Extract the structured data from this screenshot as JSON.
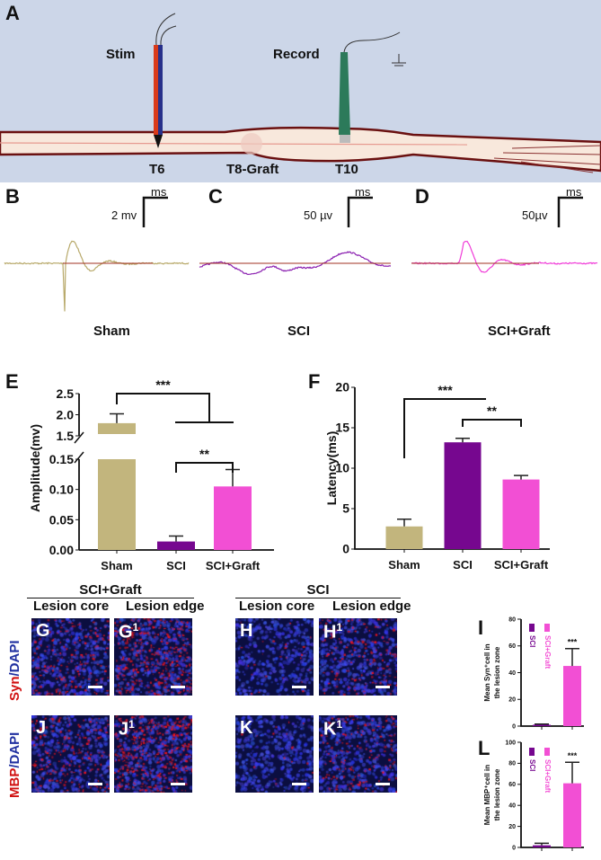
{
  "panel_labels": {
    "a": "A",
    "b": "B",
    "c": "C",
    "d": "D",
    "e": "E",
    "f": "F",
    "g": "G",
    "g1": "G",
    "h": "H",
    "h1": "H",
    "i": "I",
    "j": "J",
    "j1": "J",
    "k": "K",
    "k1": "K",
    "l": "L",
    "sup1": "1"
  },
  "schematic": {
    "stim": "Stim",
    "record": "Record",
    "t6": "T6",
    "t8": "T8-Graft",
    "t10": "T10"
  },
  "traces": [
    {
      "name": "Sham",
      "scale_y": "2 mv",
      "scale_x": "ms",
      "color": "#b8a96a"
    },
    {
      "name": "SCI",
      "scale_y": "50 µv",
      "scale_x": "ms",
      "color": "#8a1fb0"
    },
    {
      "name": "SCI+Graft",
      "scale_y": "50µv",
      "scale_x": "ms",
      "color": "#f03cd8"
    }
  ],
  "colors": {
    "sham": "#c2b57d",
    "sci": "#76078f",
    "graft": "#f24fd4",
    "baseline": "#a03020"
  },
  "chart_data": [
    {
      "id": "E",
      "type": "bar",
      "ylabel": "Amplitude(mv)",
      "categories": [
        "Sham",
        "SCI",
        "SCI+Graft"
      ],
      "values": [
        1.8,
        0.014,
        0.105
      ],
      "errors": [
        0.22,
        0.009,
        0.028
      ],
      "broken_axis": true,
      "ylim_lower": [
        0,
        0.15
      ],
      "ylim_upper": [
        1.5,
        2.5
      ],
      "yticks_lower": [
        "0.00",
        "0.05",
        "0.10",
        "0.15"
      ],
      "yticks_upper": [
        "1.5",
        "2.0",
        "2.5"
      ],
      "significance": [
        {
          "pair": [
            "Sham",
            "SCI / SCI+Graft"
          ],
          "label": "***"
        },
        {
          "pair": [
            "SCI",
            "SCI+Graft"
          ],
          "label": "**"
        }
      ]
    },
    {
      "id": "F",
      "type": "bar",
      "ylabel": "Latency(ms)",
      "categories": [
        "Sham",
        "SCI",
        "SCI+Graft"
      ],
      "values": [
        2.8,
        13.2,
        8.6
      ],
      "errors": [
        0.9,
        0.5,
        0.5
      ],
      "ylim": [
        0,
        20
      ],
      "yticks": [
        "0",
        "5",
        "10",
        "15",
        "20"
      ],
      "significance": [
        {
          "pair": [
            "Sham",
            "SCI"
          ],
          "label": "***"
        },
        {
          "pair": [
            "SCI",
            "SCI+Graft"
          ],
          "label": "**"
        }
      ]
    },
    {
      "id": "I",
      "type": "bar",
      "ylabel": "Mean Syn⁺cell in the lesion zone",
      "categories": [
        "SCI",
        "SCI+Graft"
      ],
      "values": [
        1,
        45
      ],
      "errors": [
        0.5,
        13
      ],
      "ylim": [
        0,
        80
      ],
      "yticks": [
        "0",
        "20",
        "40",
        "60",
        "80"
      ],
      "legend": [
        "SCI",
        "SCI+Graft"
      ],
      "legend_placement": "top-left",
      "annotation": "***"
    },
    {
      "id": "L",
      "type": "bar",
      "ylabel": "Mean MBP⁺cell in the lesion zone",
      "categories": [
        "SCI",
        "SCI+Graft"
      ],
      "values": [
        2,
        61
      ],
      "errors": [
        2,
        20
      ],
      "ylim": [
        0,
        100
      ],
      "yticks": [
        "0",
        "20",
        "40",
        "60",
        "80",
        "100"
      ],
      "legend": [
        "SCI",
        "SCI+Graft"
      ],
      "legend_placement": "top-left",
      "annotation": "***"
    }
  ],
  "micrographs": {
    "group_sci_graft": "SCI+Graft",
    "group_sci": "SCI",
    "lesion_core": "Lesion core",
    "lesion_edge": "Lesion edge",
    "row1_stain_a": "Syn",
    "row1_stain_b": "/DAPI",
    "row2_stain_a": "MBP",
    "row2_stain_b": "/DAPI"
  }
}
